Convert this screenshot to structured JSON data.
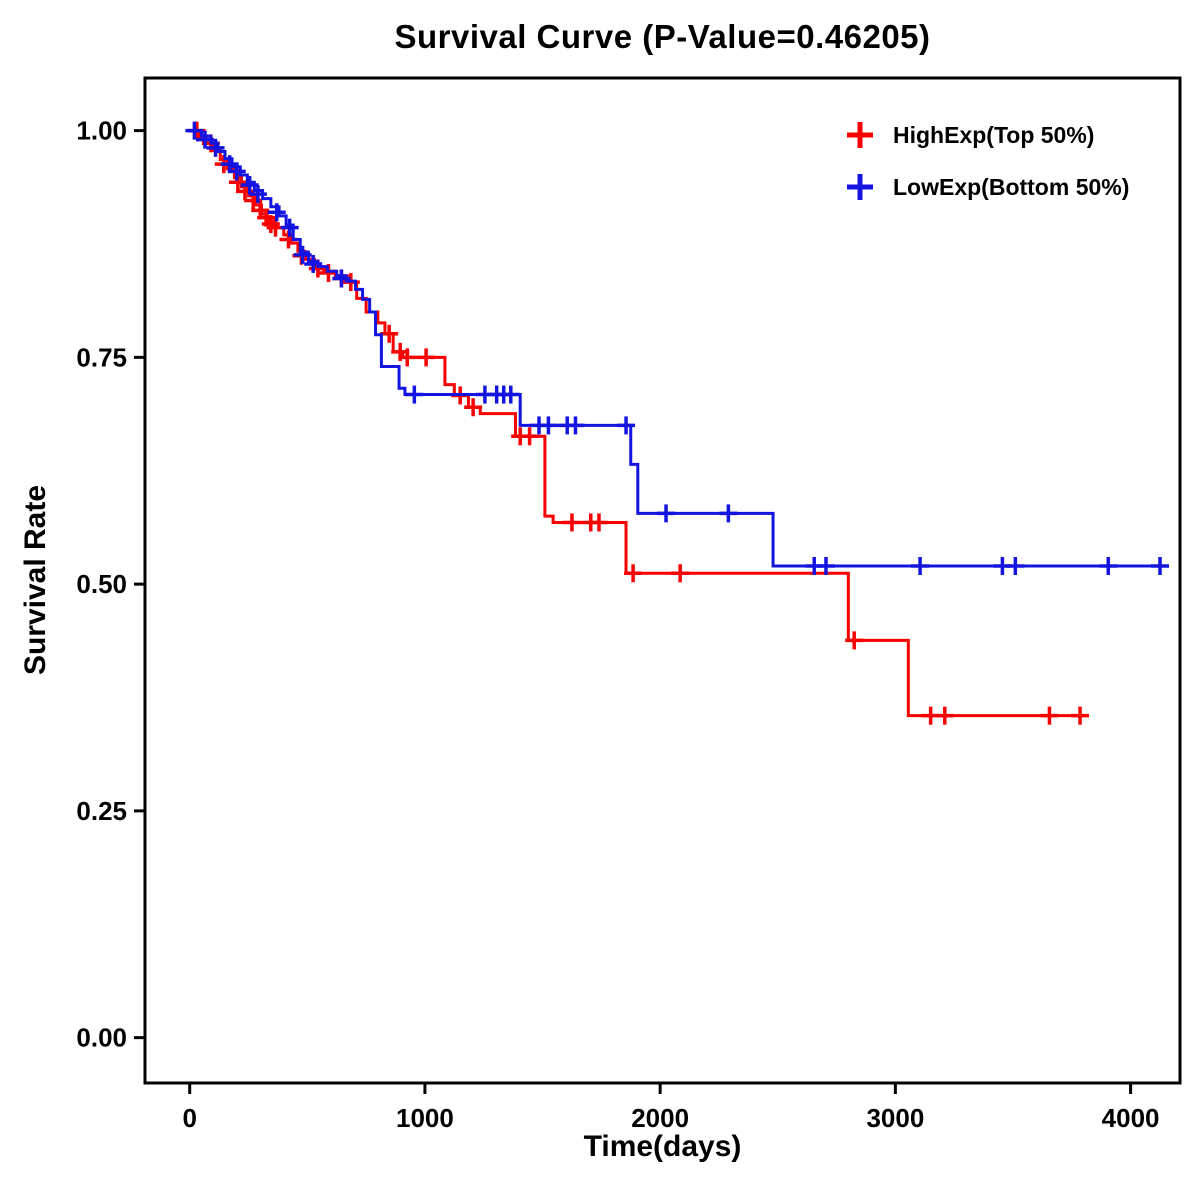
{
  "page": {
    "background": "#ffffff"
  },
  "chart_data": {
    "type": "line",
    "subtype": "kaplan-meier-step",
    "title": "Survival Curve (P-Value=0.46205)",
    "xlabel": "Time(days)",
    "ylabel": "Survival Rate",
    "xlim": [
      -190,
      4210
    ],
    "ylim": [
      -0.05,
      1.058
    ],
    "xticks": [
      0,
      1000,
      2000,
      3000,
      4000
    ],
    "xtick_labels": [
      "0",
      "1000",
      "2000",
      "3000",
      "4000"
    ],
    "yticks": [
      0,
      0.25,
      0.5,
      0.75,
      1.0
    ],
    "ytick_labels": [
      "0.00",
      "0.25",
      "0.50",
      "0.75",
      "1.00"
    ],
    "grid": false,
    "legend_position": "top-right",
    "frame_color": "#000000",
    "series": [
      {
        "name": "HighExp(Top 50%)",
        "color": "#F80000",
        "points": [
          [
            0,
            1.0
          ],
          [
            40,
            0.993
          ],
          [
            70,
            0.986
          ],
          [
            100,
            0.978
          ],
          [
            130,
            0.968
          ],
          [
            160,
            0.958
          ],
          [
            190,
            0.948
          ],
          [
            220,
            0.938
          ],
          [
            250,
            0.928
          ],
          [
            280,
            0.918
          ],
          [
            305,
            0.908
          ],
          [
            330,
            0.9
          ],
          [
            360,
            0.893
          ],
          [
            400,
            0.885
          ],
          [
            430,
            0.876
          ],
          [
            460,
            0.867
          ],
          [
            490,
            0.858
          ],
          [
            530,
            0.85
          ],
          [
            570,
            0.845
          ],
          [
            620,
            0.84
          ],
          [
            670,
            0.833
          ],
          [
            710,
            0.815
          ],
          [
            750,
            0.8
          ],
          [
            800,
            0.788
          ],
          [
            830,
            0.776
          ],
          [
            865,
            0.756
          ],
          [
            905,
            0.75
          ],
          [
            1085,
            0.72
          ],
          [
            1125,
            0.708
          ],
          [
            1185,
            0.695
          ],
          [
            1235,
            0.688
          ],
          [
            1385,
            0.663
          ],
          [
            1510,
            0.575
          ],
          [
            1545,
            0.568
          ],
          [
            1855,
            0.512
          ],
          [
            2800,
            0.438
          ],
          [
            3055,
            0.355
          ],
          [
            3800,
            0.355
          ]
        ],
        "censors": [
          [
            30,
            1.0
          ],
          [
            90,
            0.986
          ],
          [
            145,
            0.963
          ],
          [
            205,
            0.943
          ],
          [
            235,
            0.933
          ],
          [
            270,
            0.923
          ],
          [
            300,
            0.912
          ],
          [
            325,
            0.904
          ],
          [
            345,
            0.897
          ],
          [
            365,
            0.893
          ],
          [
            420,
            0.88
          ],
          [
            475,
            0.862
          ],
          [
            545,
            0.848
          ],
          [
            590,
            0.843
          ],
          [
            645,
            0.837
          ],
          [
            685,
            0.833
          ],
          [
            848,
            0.776
          ],
          [
            895,
            0.756
          ],
          [
            925,
            0.75
          ],
          [
            1005,
            0.75
          ],
          [
            1150,
            0.708
          ],
          [
            1205,
            0.695
          ],
          [
            1405,
            0.663
          ],
          [
            1445,
            0.663
          ],
          [
            1625,
            0.568
          ],
          [
            1705,
            0.568
          ],
          [
            1740,
            0.568
          ],
          [
            1885,
            0.512
          ],
          [
            2085,
            0.512
          ],
          [
            2825,
            0.438
          ],
          [
            3150,
            0.355
          ],
          [
            3210,
            0.355
          ],
          [
            3655,
            0.355
          ],
          [
            3785,
            0.355
          ]
        ]
      },
      {
        "name": "LowExp(Bottom 50%)",
        "color": "#1414E1",
        "points": [
          [
            0,
            1.0
          ],
          [
            50,
            0.994
          ],
          [
            90,
            0.986
          ],
          [
            120,
            0.977
          ],
          [
            150,
            0.969
          ],
          [
            180,
            0.96
          ],
          [
            215,
            0.951
          ],
          [
            245,
            0.943
          ],
          [
            275,
            0.934
          ],
          [
            310,
            0.925
          ],
          [
            345,
            0.916
          ],
          [
            380,
            0.906
          ],
          [
            410,
            0.896
          ],
          [
            440,
            0.88
          ],
          [
            470,
            0.866
          ],
          [
            505,
            0.856
          ],
          [
            545,
            0.85
          ],
          [
            585,
            0.845
          ],
          [
            625,
            0.84
          ],
          [
            665,
            0.834
          ],
          [
            705,
            0.825
          ],
          [
            735,
            0.814
          ],
          [
            765,
            0.8
          ],
          [
            790,
            0.775
          ],
          [
            815,
            0.74
          ],
          [
            890,
            0.716
          ],
          [
            915,
            0.709
          ],
          [
            1405,
            0.675
          ],
          [
            1875,
            0.632
          ],
          [
            1905,
            0.578
          ],
          [
            2480,
            0.52
          ],
          [
            4150,
            0.52
          ]
        ],
        "censors": [
          [
            20,
            1.0
          ],
          [
            65,
            0.99
          ],
          [
            110,
            0.981
          ],
          [
            170,
            0.963
          ],
          [
            200,
            0.955
          ],
          [
            255,
            0.94
          ],
          [
            290,
            0.93
          ],
          [
            370,
            0.91
          ],
          [
            425,
            0.893
          ],
          [
            480,
            0.863
          ],
          [
            525,
            0.853
          ],
          [
            645,
            0.837
          ],
          [
            955,
            0.709
          ],
          [
            1255,
            0.709
          ],
          [
            1305,
            0.709
          ],
          [
            1335,
            0.709
          ],
          [
            1365,
            0.709
          ],
          [
            1485,
            0.675
          ],
          [
            1525,
            0.675
          ],
          [
            1605,
            0.675
          ],
          [
            1640,
            0.675
          ],
          [
            1855,
            0.675
          ],
          [
            2025,
            0.578
          ],
          [
            2290,
            0.578
          ],
          [
            2655,
            0.52
          ],
          [
            2705,
            0.52
          ],
          [
            3105,
            0.52
          ],
          [
            3455,
            0.52
          ],
          [
            3510,
            0.52
          ],
          [
            3905,
            0.52
          ],
          [
            4125,
            0.52
          ]
        ]
      }
    ]
  }
}
